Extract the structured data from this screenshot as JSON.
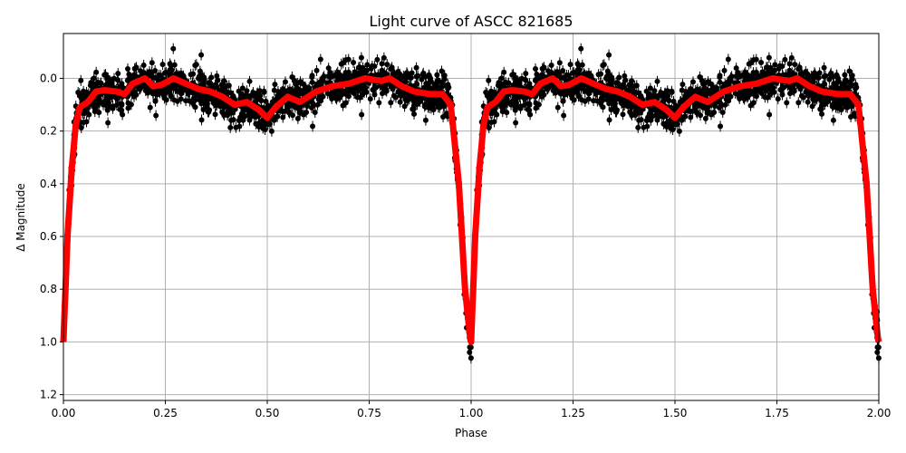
{
  "chart_data": {
    "type": "scatter",
    "title": "Light curve of ASCC 821685",
    "xlabel": "Phase",
    "ylabel": "Δ Magnitude",
    "xlim": [
      0,
      2
    ],
    "ylim": [
      1.222,
      -0.17
    ],
    "y_inverted": true,
    "grid": true,
    "xticks": [
      "0.00",
      "0.25",
      "0.50",
      "0.75",
      "1.00",
      "1.25",
      "1.50",
      "1.75",
      "2.00"
    ],
    "yticks": [
      "0.0",
      "0.2",
      "0.4",
      "0.6",
      "0.8",
      "1.0",
      "1.2"
    ],
    "colors": {
      "points": "#000000",
      "model": "#ff0000",
      "grid": "#b0b0b0"
    },
    "series": [
      {
        "kind": "scatter-with-errorbars",
        "color": "#000000",
        "scatter_sd": 0.035,
        "period_repeated": true
      },
      {
        "kind": "line",
        "color": "#ff0000",
        "phase": [
          0,
          0.01,
          0.02,
          0.03,
          0.04,
          0.06,
          0.08,
          0.1,
          0.13,
          0.15,
          0.17,
          0.2,
          0.22,
          0.24,
          0.27,
          0.3,
          0.33,
          0.36,
          0.39,
          0.42,
          0.45,
          0.48,
          0.5,
          0.52,
          0.55,
          0.58,
          0.62,
          0.66,
          0.7,
          0.74,
          0.78,
          0.8,
          0.83,
          0.86,
          0.9,
          0.93,
          0.95,
          0.97,
          0.985,
          1.0
        ],
        "mag": [
          1.0,
          0.6,
          0.35,
          0.18,
          0.11,
          0.09,
          0.05,
          0.045,
          0.05,
          0.06,
          0.02,
          0.0,
          0.03,
          0.025,
          0.0,
          0.02,
          0.04,
          0.05,
          0.07,
          0.1,
          0.09,
          0.12,
          0.15,
          0.11,
          0.07,
          0.09,
          0.05,
          0.03,
          0.02,
          0.0,
          0.01,
          0.0,
          0.03,
          0.05,
          0.06,
          0.06,
          0.1,
          0.4,
          0.8,
          1.02
        ]
      }
    ]
  }
}
